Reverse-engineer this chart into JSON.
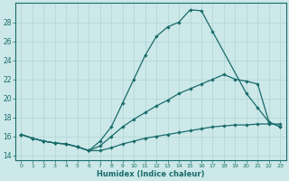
{
  "xlabel": "Humidex (Indice chaleur)",
  "bg_color": "#cce8e8",
  "grid_color": "#b0d4d4",
  "line_color": "#1a6b6b",
  "xlim": [
    -0.5,
    23.5
  ],
  "ylim": [
    13.5,
    30.0
  ],
  "xticks": [
    0,
    1,
    2,
    3,
    4,
    5,
    6,
    7,
    8,
    9,
    10,
    11,
    12,
    13,
    14,
    15,
    16,
    17,
    18,
    19,
    20,
    21,
    22,
    23
  ],
  "yticks": [
    14,
    16,
    18,
    20,
    22,
    24,
    26,
    28
  ],
  "curve_top_x": [
    0,
    1,
    2,
    3,
    4,
    5,
    6,
    7,
    8,
    9,
    10,
    11,
    12,
    13,
    14,
    15,
    16,
    17,
    20,
    21,
    22,
    23
  ],
  "curve_top_y": [
    16.2,
    15.8,
    15.5,
    15.3,
    15.2,
    14.9,
    14.5,
    15.5,
    17.0,
    19.5,
    22.0,
    24.5,
    26.5,
    27.5,
    28.0,
    29.3,
    29.2,
    27.0,
    20.5,
    19.0,
    17.5,
    17.0
  ],
  "curve_mid_x": [
    0,
    1,
    2,
    3,
    4,
    5,
    6,
    7,
    8,
    9,
    10,
    11,
    12,
    13,
    14,
    15,
    16,
    17,
    18,
    19,
    20,
    21,
    22,
    23
  ],
  "curve_mid_y": [
    16.2,
    15.8,
    15.5,
    15.3,
    15.2,
    14.9,
    14.5,
    15.0,
    16.0,
    17.0,
    17.8,
    18.5,
    19.2,
    19.8,
    20.5,
    21.0,
    21.5,
    22.0,
    22.5,
    22.0,
    21.8,
    21.5,
    17.5,
    17.0
  ],
  "curve_bot_x": [
    0,
    1,
    2,
    3,
    4,
    5,
    6,
    7,
    8,
    9,
    10,
    11,
    12,
    13,
    14,
    15,
    16,
    17,
    18,
    19,
    20,
    21,
    22,
    23
  ],
  "curve_bot_y": [
    16.2,
    15.8,
    15.5,
    15.3,
    15.2,
    14.9,
    14.5,
    14.5,
    14.8,
    15.2,
    15.5,
    15.8,
    16.0,
    16.2,
    16.4,
    16.6,
    16.8,
    17.0,
    17.1,
    17.2,
    17.2,
    17.3,
    17.3,
    17.3
  ]
}
